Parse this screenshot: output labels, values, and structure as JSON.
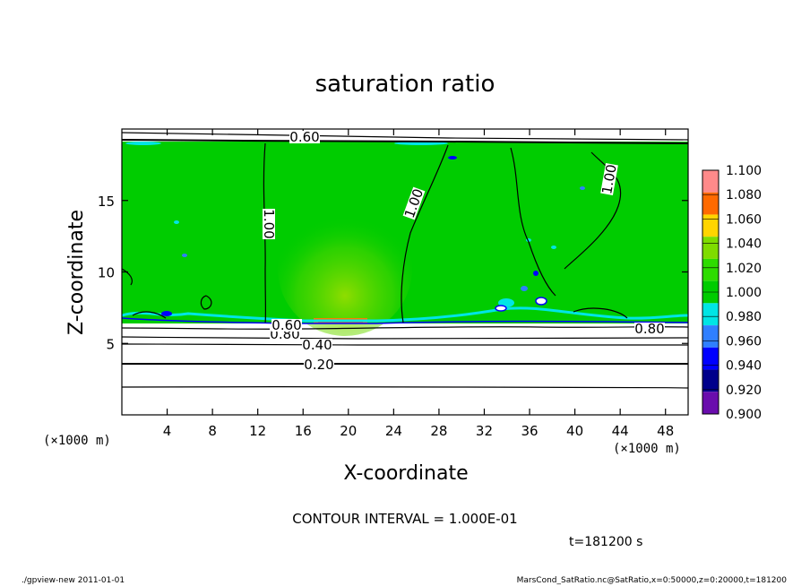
{
  "chart_data": {
    "type": "heatmap",
    "title": "saturation ratio",
    "xlabel": "X-coordinate",
    "ylabel": "Z-coordinate",
    "x_unit": "(×1000 m)",
    "y_unit": "(×1000 m)",
    "xlim": [
      0,
      50
    ],
    "ylim": [
      0,
      20
    ],
    "x_ticks": [
      4,
      8,
      12,
      16,
      20,
      24,
      28,
      32,
      36,
      40,
      44,
      48
    ],
    "y_ticks": [
      5,
      10,
      15
    ],
    "colorbar": {
      "levels": [
        0.9,
        0.92,
        0.94,
        0.96,
        0.98,
        1.0,
        1.02,
        1.04,
        1.06,
        1.08,
        1.1
      ],
      "labels": [
        "0.900",
        "0.920",
        "0.940",
        "0.960",
        "0.980",
        "1.000",
        "1.020",
        "1.040",
        "1.060",
        "1.080",
        "1.100"
      ],
      "colors": [
        "#6a0dad",
        "#00008b",
        "#0000ff",
        "#2f7fff",
        "#00e5e5",
        "#00cc00",
        "#2ddc00",
        "#7fdc00",
        "#ffd500",
        "#ff6a00",
        "#ff8a8a"
      ]
    },
    "contour_labels": [
      "1.00",
      "1.00",
      "1.00",
      "0.80",
      "0.60",
      "0.40",
      "0.20",
      "0.80",
      "0.60"
    ],
    "contour_interval_text": "CONTOUR INTERVAL = 1.000E-01",
    "time_text": "t=181200 s",
    "region_data": {
      "saturated_layer_z": [
        6.5,
        19.0
      ],
      "saturated_value": 1.0,
      "gradient_layer_z": [
        0,
        6.5
      ],
      "gradient_contours": [
        {
          "z": 6.0,
          "value": 0.8
        },
        {
          "z": 5.5,
          "value": 0.6
        },
        {
          "z": 5.0,
          "value": 0.4
        },
        {
          "z": 3.6,
          "value": 0.2
        }
      ],
      "hot_spot": {
        "x": 20,
        "z": 6.7,
        "value": 1.06
      },
      "warm_plume_x": [
        15,
        24
      ]
    }
  },
  "footer": {
    "left": "./gpview-new  2011-01-01",
    "right": "MarsCond_SatRatio.nc@SatRatio,x=0:50000,z=0:20000,t=181200"
  }
}
